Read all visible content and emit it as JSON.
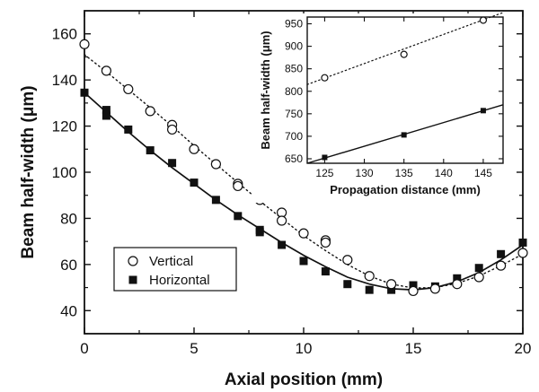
{
  "chart_data": [
    {
      "type": "scatter",
      "title": "",
      "xlabel": "Axial position (mm)",
      "ylabel": "Beam half-width (μm)",
      "xlim": [
        0,
        20
      ],
      "ylim": [
        30,
        170
      ],
      "xticks": [
        0,
        5,
        10,
        15,
        20
      ],
      "yticks": [
        40,
        60,
        80,
        100,
        120,
        140,
        160
      ],
      "legend_position": "lower-left",
      "series": [
        {
          "name": "Vertical",
          "marker": "open-circle",
          "fit_line": "dotted",
          "points": [
            [
              0,
              155.5
            ],
            [
              1,
              144
            ],
            [
              2,
              136
            ],
            [
              3,
              126.5
            ],
            [
              4,
              120.5
            ],
            [
              4,
              118.5
            ],
            [
              5,
              110
            ],
            [
              6,
              103.5
            ],
            [
              7,
              95
            ],
            [
              7,
              94
            ],
            [
              8,
              88
            ],
            [
              9,
              82.5
            ],
            [
              9,
              79
            ],
            [
              10,
              73.5
            ],
            [
              11,
              70.5
            ],
            [
              11,
              69.5
            ],
            [
              12,
              62
            ],
            [
              13,
              55
            ],
            [
              14,
              51.5
            ],
            [
              15,
              48.5
            ],
            [
              16,
              49.5
            ],
            [
              17,
              51.5
            ],
            [
              18,
              54.5
            ],
            [
              19,
              59.5
            ],
            [
              20,
              65
            ]
          ],
          "fit": [
            [
              0,
              151
            ],
            [
              1,
              143.5
            ],
            [
              2,
              135.8
            ],
            [
              3,
              128
            ],
            [
              4,
              120
            ],
            [
              5,
              111.5
            ],
            [
              6,
              103.5
            ],
            [
              7,
              95.5
            ],
            [
              8,
              87.5
            ],
            [
              9,
              80
            ],
            [
              10,
              72.5
            ],
            [
              11,
              66
            ],
            [
              12,
              60
            ],
            [
              13,
              55
            ],
            [
              14,
              51.5
            ],
            [
              15,
              49.8
            ],
            [
              16,
              50
            ],
            [
              17,
              51.8
            ],
            [
              18,
              55
            ],
            [
              19,
              59.5
            ],
            [
              20,
              64.5
            ]
          ]
        },
        {
          "name": "Horizontal",
          "marker": "filled-square",
          "fit_line": "solid",
          "points": [
            [
              0,
              134.5
            ],
            [
              1,
              127
            ],
            [
              1,
              124.5
            ],
            [
              2,
              118.5
            ],
            [
              3,
              109.5
            ],
            [
              4,
              104
            ],
            [
              5,
              95.5
            ],
            [
              6,
              88
            ],
            [
              7,
              81
            ],
            [
              8,
              75
            ],
            [
              8,
              74
            ],
            [
              9,
              68.5
            ],
            [
              10,
              61.5
            ],
            [
              11,
              57
            ],
            [
              12,
              51.5
            ],
            [
              13,
              49
            ],
            [
              14,
              49
            ],
            [
              15,
              51
            ],
            [
              16,
              50.5
            ],
            [
              17,
              54
            ],
            [
              18,
              58.5
            ],
            [
              19,
              64.5
            ],
            [
              20,
              69.5
            ]
          ],
          "fit": [
            [
              0,
              134.5
            ],
            [
              1,
              126
            ],
            [
              2,
              117.5
            ],
            [
              3,
              109.5
            ],
            [
              4,
              102
            ],
            [
              5,
              95
            ],
            [
              6,
              88
            ],
            [
              7,
              81.5
            ],
            [
              8,
              75.5
            ],
            [
              9,
              69.5
            ],
            [
              10,
              64
            ],
            [
              11,
              59
            ],
            [
              12,
              54.5
            ],
            [
              13,
              51.5
            ],
            [
              14,
              49.5
            ],
            [
              15,
              49
            ],
            [
              16,
              50
            ],
            [
              17,
              52.5
            ],
            [
              18,
              56.5
            ],
            [
              19,
              62
            ],
            [
              20,
              68.5
            ]
          ]
        }
      ]
    },
    {
      "type": "line",
      "title": "",
      "xlabel": "Propagation distance (mm)",
      "ylabel": "Beam half-width (μm)",
      "xlim": [
        122.8,
        147.5
      ],
      "ylim": [
        640,
        965
      ],
      "xticks": [
        125,
        130,
        135,
        140,
        145
      ],
      "yticks": [
        650,
        700,
        750,
        800,
        850,
        900,
        950
      ],
      "series": [
        {
          "marker": "open-circle",
          "line": "dotted",
          "points": [
            [
              125,
              830
            ],
            [
              135,
              882
            ],
            [
              145,
              958
            ]
          ],
          "line_range": [
            [
              122.8,
              815
            ],
            [
              147.5,
              975
            ]
          ]
        },
        {
          "marker": "filled-square",
          "line": "solid",
          "points": [
            [
              125,
              653
            ],
            [
              135,
              703
            ],
            [
              145,
              757
            ]
          ],
          "line_range": [
            [
              122.8,
              640
            ],
            [
              147.5,
              770
            ]
          ]
        }
      ]
    }
  ]
}
